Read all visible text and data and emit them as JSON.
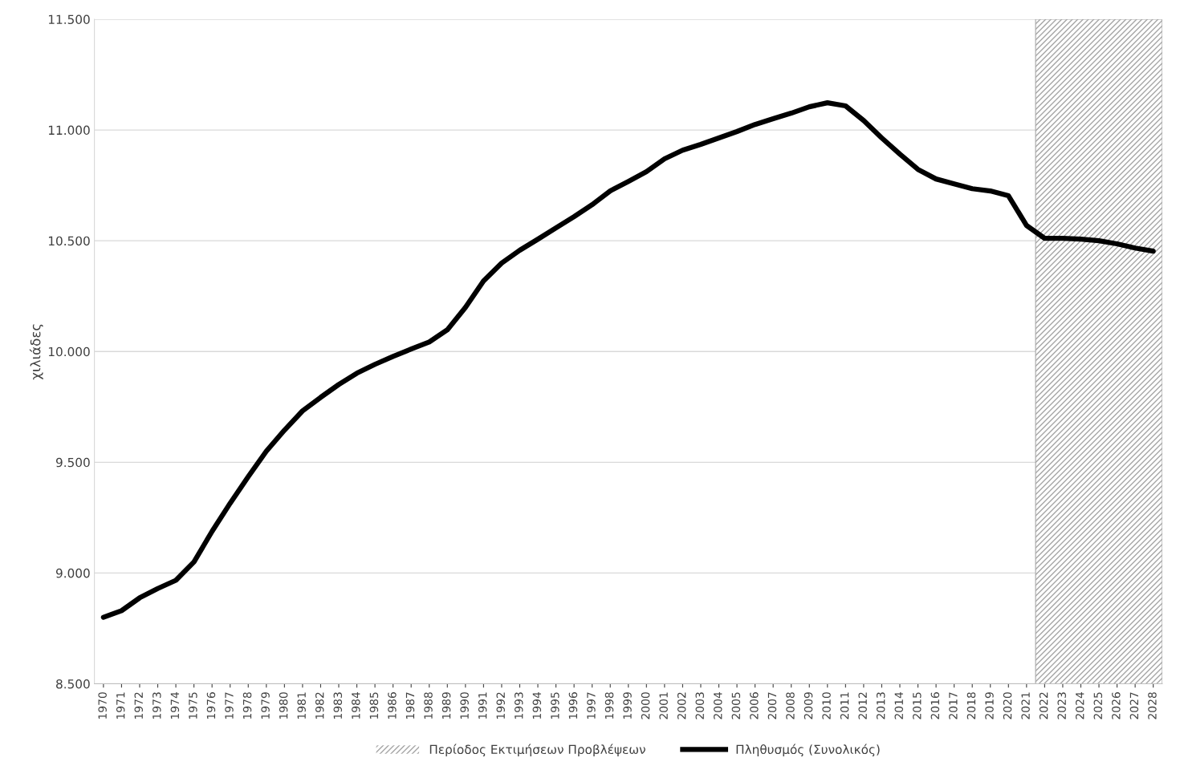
{
  "chart_data": {
    "type": "line",
    "ylabel": "χιλιάδες",
    "categories": [
      "1970",
      "1971",
      "1972",
      "1973",
      "1974",
      "1975",
      "1976",
      "1977",
      "1978",
      "1979",
      "1980",
      "1981",
      "1982",
      "1983",
      "1984",
      "1985",
      "1986",
      "1987",
      "1988",
      "1989",
      "1990",
      "1991",
      "1992",
      "1993",
      "1994",
      "1995",
      "1996",
      "1997",
      "1998",
      "1999",
      "2000",
      "2001",
      "2002",
      "2003",
      "2004",
      "2005",
      "2006",
      "2007",
      "2008",
      "2009",
      "2010",
      "2011",
      "2012",
      "2013",
      "2014",
      "2015",
      "2016",
      "2017",
      "2018",
      "2019",
      "2020",
      "2021",
      "2022",
      "2023",
      "2024",
      "2025",
      "2026",
      "2027",
      "2028"
    ],
    "series": [
      {
        "name": "Πληθυσμός (Συνολικός)",
        "color": "#000000",
        "values": [
          8800,
          8830,
          8888,
          8930,
          8967,
          9050,
          9188,
          9315,
          9435,
          9550,
          9645,
          9732,
          9793,
          9851,
          9902,
          9942,
          9978,
          10011,
          10043,
          10098,
          10199,
          10319,
          10399,
          10457,
          10507,
          10558,
          10609,
          10663,
          10725,
          10768,
          10812,
          10870,
          10909,
          10935,
          10964,
          10993,
          11025,
          11051,
          11076,
          11105,
          11123,
          11109,
          11043,
          10964,
          10891,
          10822,
          10779,
          10757,
          10735,
          10725,
          10703,
          10569,
          10511,
          10511,
          10507,
          10500,
          10486,
          10467,
          10453
        ]
      }
    ],
    "bands": [
      {
        "axis": "x",
        "from": "2022",
        "to": "2028",
        "label": "Περίοδος Εκτιμήσεων Προβλέψεων",
        "color": "#a6a6a6"
      }
    ],
    "ylim": [
      8500,
      11500
    ],
    "yticks": [
      {
        "value": 8500,
        "label": "8.500"
      },
      {
        "value": 9000,
        "label": "9.000"
      },
      {
        "value": 9500,
        "label": "9.500"
      },
      {
        "value": 10000,
        "label": "10.000"
      },
      {
        "value": 10500,
        "label": "10.500"
      },
      {
        "value": 11000,
        "label": "11.000"
      },
      {
        "value": 11500,
        "label": "11.500"
      }
    ],
    "grid": "y",
    "legend": "bottom",
    "marker": "none",
    "line_style": "solid"
  }
}
